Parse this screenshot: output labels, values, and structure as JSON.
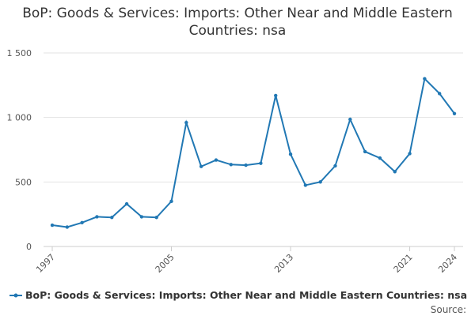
{
  "chart_data": {
    "type": "line",
    "title": "BoP: Goods & Services: Imports: Other Near and Middle Eastern Countries: nsa",
    "x": [
      1997,
      1998,
      1999,
      2000,
      2001,
      2002,
      2003,
      2004,
      2005,
      2006,
      2007,
      2008,
      2009,
      2010,
      2011,
      2012,
      2013,
      2014,
      2015,
      2016,
      2017,
      2018,
      2019,
      2020,
      2021,
      2022,
      2023,
      2024
    ],
    "series": [
      {
        "name": "BoP: Goods & Services: Imports: Other Near and Middle Eastern Countries: nsa",
        "color": "#2178b4",
        "values": [
          165,
          150,
          185,
          230,
          225,
          330,
          230,
          225,
          350,
          960,
          620,
          670,
          635,
          630,
          645,
          1170,
          715,
          475,
          500,
          625,
          985,
          735,
          685,
          580,
          720,
          1300,
          1185,
          1030
        ]
      }
    ],
    "xlim": [
      1997,
      2024
    ],
    "xticks": [
      1997,
      2005,
      2013,
      2021,
      2024
    ],
    "ylim": [
      0,
      1500
    ],
    "yticks": [
      0,
      500,
      {
        "value": 1000,
        "label": "1 000"
      },
      {
        "value": 1500,
        "label": "1 500"
      }
    ],
    "grid": true,
    "legend": "bottom",
    "source": "Source:"
  }
}
